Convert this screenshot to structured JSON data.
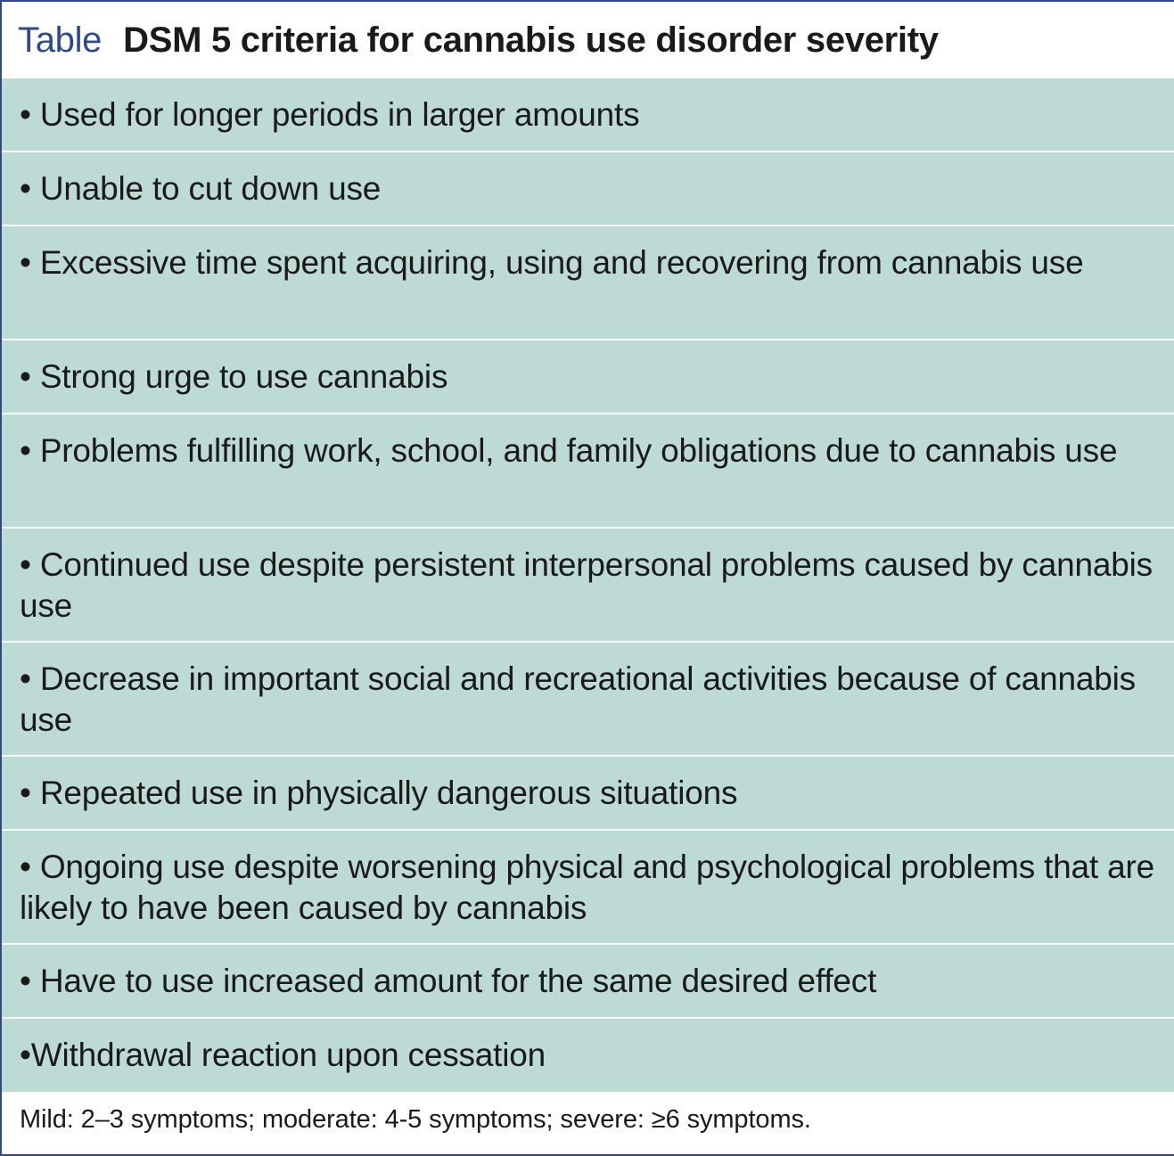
{
  "header": {
    "label": "Table",
    "title": "DSM 5 criteria for cannabis use disorder severity"
  },
  "criteria": [
    "• Used for longer periods in larger amounts",
    "• Unable to cut down use",
    "• Excessive time spent acquiring, using and recovering from cannabis use",
    "• Strong urge to use cannabis",
    "• Problems fulfilling work, school, and family obligations due to cannabis use",
    "• Continued use despite persistent interpersonal problems caused by cannabis use",
    "• Decrease in important social and recreational activities because of cannabis use",
    "• Repeated use in physically dangerous situations",
    "• Ongoing use despite worsening physical and psychological problems that are likely to have been caused by cannabis",
    "• Have to use increased amount for the same desired effect",
    "•Withdrawal reaction upon cessation"
  ],
  "footnote": "Mild: 2–3 symptoms; moderate: 4-5 symptoms; severe: ≥6 symptoms.",
  "colors": {
    "accent": "#2f4a8a",
    "row_background": "#bddad5",
    "text": "#1a1a1a"
  }
}
